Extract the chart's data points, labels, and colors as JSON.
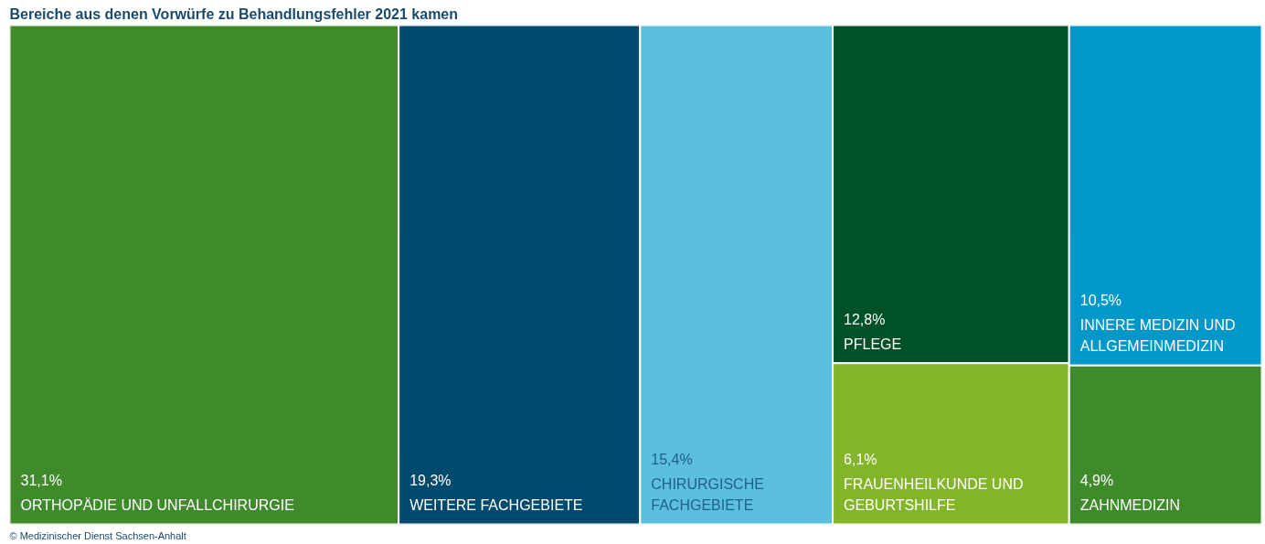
{
  "chart_data": {
    "type": "other",
    "title": "Bereiche aus denen Vorwürfe zu Behandlungsfehler 2021 kamen",
    "categories": [
      "ORTHOPÄDIE UND UNFALLCHIRURGIE",
      "WEITERE FACHGEBIETE",
      "CHIRURGISCHE FACHGEBIETE",
      "PFLEGE",
      "FRAUENHEILKUNDE UND GEBURTSHILFE",
      "INNERE MEDIZIN UND ALLGEMEINMEDIZIN",
      "ZAHNMEDIZIN"
    ],
    "values": [
      31.1,
      19.3,
      15.4,
      12.8,
      6.1,
      10.5,
      4.9
    ],
    "value_labels": [
      "31,1%",
      "19,3%",
      "15,4%",
      "12,8%",
      "6,1%",
      "10,5%",
      "4,9%"
    ],
    "colors": [
      "#3f8a2a",
      "#004a6e",
      "#5bc0e0",
      "#005128",
      "#82b528",
      "#0098c8",
      "#3f8a2a"
    ],
    "annotations": [
      "© Medizinischer Dienst Sachsen-Anhalt"
    ]
  }
}
